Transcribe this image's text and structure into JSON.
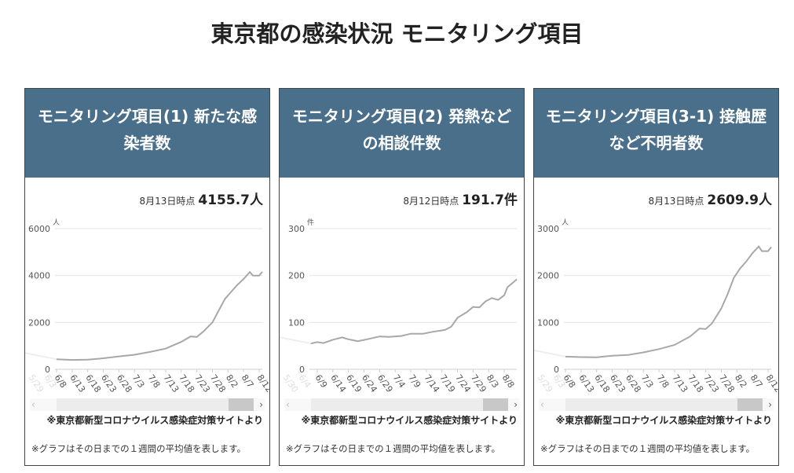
{
  "page_title": "東京都の感染状況 モニタリング項目",
  "panels": [
    {
      "title": "モニタリング項目(1) 新たな感染者数",
      "date_label": "8月13日時点",
      "value": "4155.7人",
      "unit": "人",
      "chart_data": {
        "type": "line",
        "ylim": [
          0,
          6000
        ],
        "yticks": [
          "0",
          "2000",
          "4000",
          "6000"
        ],
        "ylabel": "人",
        "xticks": [
          "6/8",
          "6/13",
          "6/18",
          "6/23",
          "6/28",
          "7/3",
          "7/8",
          "7/13",
          "7/18",
          "7/23",
          "7/28",
          "8/2",
          "8/7",
          "8/12"
        ],
        "faded_xticks": [
          "5/29",
          "6/3"
        ],
        "start": "6/8",
        "end": "8/13",
        "x": [
          "6/8",
          "6/13",
          "6/18",
          "6/23",
          "6/28",
          "7/3",
          "7/8",
          "7/13",
          "7/18",
          "7/21",
          "7/23",
          "7/25",
          "7/28",
          "7/30",
          "8/1",
          "8/3",
          "8/5",
          "8/7",
          "8/9",
          "8/10",
          "8/12",
          "8/13"
        ],
        "values": [
          430,
          400,
          410,
          470,
          550,
          620,
          740,
          880,
          1170,
          1400,
          1380,
          1600,
          2000,
          2500,
          3000,
          3300,
          3600,
          3850,
          4150,
          4000,
          4000,
          4156
        ]
      }
    },
    {
      "title": "モニタリング項目(2) 発熱などの相談件数",
      "date_label": "8月12日時点",
      "value": "191.7件",
      "unit": "件",
      "chart_data": {
        "type": "line",
        "ylim": [
          0,
          300
        ],
        "yticks": [
          "0",
          "100",
          "200",
          "300"
        ],
        "ylabel": "件",
        "xticks": [
          "6/9",
          "6/14",
          "6/19",
          "6/24",
          "6/29",
          "7/4",
          "7/9",
          "7/14",
          "7/19",
          "7/24",
          "7/29",
          "8/3",
          "8/8"
        ],
        "faded_xticks": [
          "5/30",
          "6/4"
        ],
        "start": "6/7",
        "end": "8/12",
        "x": [
          "6/7",
          "6/9",
          "6/11",
          "6/14",
          "6/17",
          "6/19",
          "6/22",
          "6/25",
          "6/29",
          "7/2",
          "7/6",
          "7/9",
          "7/13",
          "7/16",
          "7/20",
          "7/22",
          "7/24",
          "7/27",
          "7/29",
          "7/31",
          "8/2",
          "8/4",
          "8/6",
          "8/8",
          "8/9",
          "8/11",
          "8/12"
        ],
        "values": [
          55,
          58,
          56,
          63,
          68,
          64,
          60,
          64,
          70,
          69,
          71,
          76,
          76,
          80,
          84,
          91,
          110,
          122,
          133,
          132,
          145,
          152,
          148,
          158,
          175,
          186,
          192
        ]
      }
    },
    {
      "title": "モニタリング項目(3-1) 接触歴など不明者数",
      "date_label": "8月13日時点",
      "value": "2609.9人",
      "unit": "人",
      "chart_data": {
        "type": "line",
        "ylim": [
          0,
          3000
        ],
        "yticks": [
          "0",
          "1000",
          "2000",
          "3000"
        ],
        "ylabel": "人",
        "xticks": [
          "6/8",
          "6/13",
          "6/18",
          "6/23",
          "6/28",
          "7/3",
          "7/8",
          "7/13",
          "7/18",
          "7/23",
          "7/28",
          "8/2",
          "8/7",
          "8/12"
        ],
        "faded_xticks": [
          "5/29",
          "6/3"
        ],
        "start": "6/8",
        "end": "8/13",
        "x": [
          "6/8",
          "6/13",
          "6/18",
          "6/23",
          "6/28",
          "7/3",
          "7/8",
          "7/13",
          "7/18",
          "7/21",
          "7/23",
          "7/25",
          "7/28",
          "7/30",
          "8/1",
          "8/3",
          "8/5",
          "8/7",
          "8/9",
          "8/10",
          "8/12",
          "8/13"
        ],
        "values": [
          270,
          260,
          255,
          290,
          305,
          360,
          430,
          520,
          700,
          870,
          860,
          980,
          1300,
          1600,
          1950,
          2150,
          2300,
          2480,
          2620,
          2520,
          2520,
          2610
        ]
      }
    }
  ],
  "source_text": "※東京都新型コロナウイルス感染症対策サイトより",
  "note_text": "※グラフはその日までの１週間の平均値を表します。",
  "colors": {
    "header": "#4a6f8a",
    "line": "#a8a8a8"
  }
}
